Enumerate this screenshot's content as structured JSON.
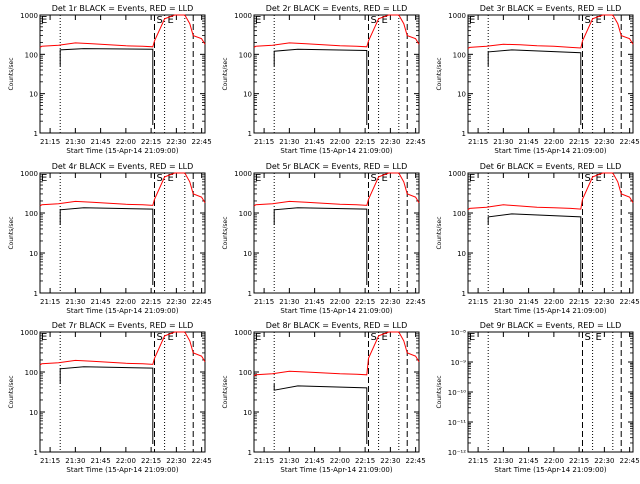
{
  "colors": {
    "events": "#000000",
    "lld": "#ff0000",
    "axes": "#000000"
  },
  "chart_data": [
    {
      "type": "line",
      "title": "Det 1r BLACK = Events, RED = LLD",
      "xlabel": "Start Time (15-Apr-14 21:09:00)",
      "ylabel": "Counts/sec",
      "scale": "log",
      "ylim": [
        1,
        1000
      ],
      "xlim": [
        "21:09",
        "22:47"
      ],
      "x_ticks": [
        "21:15",
        "21:30",
        "21:45",
        "22:00",
        "22:15",
        "22:30",
        "22:45"
      ],
      "y_ticks": [
        "1",
        "10",
        "100",
        "1000"
      ],
      "markers": [
        "S",
        "E"
      ],
      "annotation_left": "E",
      "dotted_times": [
        "21:21",
        "22:23",
        "22:35"
      ],
      "dashed_times": [
        "22:17",
        "22:40"
      ],
      "series": [
        {
          "color": "events",
          "x": [
            "21:09",
            "21:21",
            "21:35",
            "22:16"
          ],
          "y": [
            0,
            130,
            140,
            135
          ]
        },
        {
          "color": "lld",
          "x": [
            "21:09",
            "21:10",
            "21:20",
            "21:30",
            "21:40",
            "21:50",
            "22:00",
            "22:10",
            "22:16",
            "22:17",
            "22:23",
            "22:29",
            "22:31",
            "22:35",
            "22:38",
            "22:40",
            "22:45",
            "22:47"
          ],
          "y": [
            150,
            160,
            170,
            195,
            185,
            175,
            165,
            160,
            155,
            220,
            800,
            1000,
            1000,
            1000,
            600,
            300,
            250,
            180
          ]
        }
      ]
    },
    {
      "type": "line",
      "title": "Det 2r BLACK = Events, RED = LLD",
      "xlabel": "Start Time (15-Apr-14 21:09:00)",
      "ylabel": "Counts/sec",
      "scale": "log",
      "ylim": [
        1,
        1000
      ],
      "xlim": [
        "21:09",
        "22:47"
      ],
      "x_ticks": [
        "21:15",
        "21:30",
        "21:45",
        "22:00",
        "22:15",
        "22:30",
        "22:45"
      ],
      "y_ticks": [
        "1",
        "10",
        "100",
        "1000"
      ],
      "markers": [
        "S",
        "E"
      ],
      "annotation_left": "E",
      "dotted_times": [
        "21:21",
        "22:23",
        "22:35"
      ],
      "dashed_times": [
        "22:17",
        "22:40"
      ],
      "series": [
        {
          "color": "events",
          "x": [
            "21:09",
            "21:21",
            "21:35",
            "22:16"
          ],
          "y": [
            0,
            120,
            135,
            125
          ]
        },
        {
          "color": "lld",
          "x": [
            "21:09",
            "21:10",
            "21:20",
            "21:30",
            "21:40",
            "21:50",
            "22:00",
            "22:10",
            "22:16",
            "22:17",
            "22:23",
            "22:29",
            "22:31",
            "22:35",
            "22:38",
            "22:40",
            "22:45",
            "22:47"
          ],
          "y": [
            150,
            160,
            170,
            195,
            185,
            175,
            165,
            160,
            155,
            220,
            800,
            1000,
            1000,
            1000,
            600,
            300,
            250,
            180
          ]
        }
      ]
    },
    {
      "type": "line",
      "title": "Det 3r BLACK = Events, RED = LLD",
      "xlabel": "Start Time (15-Apr-14 21:09:00)",
      "ylabel": "Counts/sec",
      "scale": "log",
      "ylim": [
        1,
        1000
      ],
      "xlim": [
        "21:09",
        "22:47"
      ],
      "x_ticks": [
        "21:15",
        "21:30",
        "21:45",
        "22:00",
        "22:15",
        "22:30",
        "22:45"
      ],
      "y_ticks": [
        "1",
        "10",
        "100",
        "1000"
      ],
      "markers": [
        "S",
        "E"
      ],
      "annotation_left": "E",
      "dotted_times": [
        "21:21",
        "22:23",
        "22:35"
      ],
      "dashed_times": [
        "22:17",
        "22:40"
      ],
      "series": [
        {
          "color": "events",
          "x": [
            "21:09",
            "21:21",
            "21:35",
            "22:16"
          ],
          "y": [
            0,
            115,
            130,
            110
          ]
        },
        {
          "color": "lld",
          "x": [
            "21:09",
            "21:10",
            "21:20",
            "21:30",
            "21:40",
            "21:50",
            "22:00",
            "22:10",
            "22:16",
            "22:17",
            "22:23",
            "22:29",
            "22:31",
            "22:35",
            "22:38",
            "22:40",
            "22:45",
            "22:47"
          ],
          "y": [
            140,
            150,
            160,
            180,
            175,
            165,
            160,
            150,
            145,
            220,
            800,
            1000,
            1000,
            1000,
            600,
            300,
            250,
            180
          ]
        }
      ]
    },
    {
      "type": "line",
      "title": "Det 4r BLACK = Events, RED = LLD",
      "xlabel": "Start Time (15-Apr-14 21:09:00)",
      "ylabel": "Counts/sec",
      "scale": "log",
      "ylim": [
        1,
        1000
      ],
      "xlim": [
        "21:09",
        "22:47"
      ],
      "x_ticks": [
        "21:15",
        "21:30",
        "21:45",
        "22:00",
        "22:15",
        "22:30",
        "22:45"
      ],
      "y_ticks": [
        "1",
        "10",
        "100",
        "1000"
      ],
      "markers": [
        "S",
        "E"
      ],
      "annotation_left": "E",
      "dotted_times": [
        "21:21",
        "22:23",
        "22:35"
      ],
      "dashed_times": [
        "22:17",
        "22:40"
      ],
      "series": [
        {
          "color": "events",
          "x": [
            "21:09",
            "21:21",
            "21:35",
            "22:16"
          ],
          "y": [
            0,
            120,
            135,
            125
          ]
        },
        {
          "color": "lld",
          "x": [
            "21:09",
            "21:10",
            "21:20",
            "21:30",
            "21:40",
            "21:50",
            "22:00",
            "22:10",
            "22:16",
            "22:17",
            "22:23",
            "22:29",
            "22:31",
            "22:35",
            "22:38",
            "22:40",
            "22:45",
            "22:47"
          ],
          "y": [
            150,
            160,
            170,
            195,
            185,
            175,
            165,
            160,
            155,
            220,
            800,
            1000,
            1000,
            1000,
            600,
            300,
            250,
            180
          ]
        }
      ]
    },
    {
      "type": "line",
      "title": "Det 5r BLACK = Events, RED = LLD",
      "xlabel": "Start Time (15-Apr-14 21:09:00)",
      "ylabel": "Counts/sec",
      "scale": "log",
      "ylim": [
        1,
        1000
      ],
      "xlim": [
        "21:09",
        "22:47"
      ],
      "x_ticks": [
        "21:15",
        "21:30",
        "21:45",
        "22:00",
        "22:15",
        "22:30",
        "22:45"
      ],
      "y_ticks": [
        "1",
        "10",
        "100",
        "1000"
      ],
      "markers": [
        "S",
        "E"
      ],
      "annotation_left": "E",
      "dotted_times": [
        "21:21",
        "22:23",
        "22:35"
      ],
      "dashed_times": [
        "22:17",
        "22:40"
      ],
      "series": [
        {
          "color": "events",
          "x": [
            "21:09",
            "21:21",
            "21:35",
            "22:16"
          ],
          "y": [
            0,
            120,
            135,
            125
          ]
        },
        {
          "color": "lld",
          "x": [
            "21:09",
            "21:10",
            "21:20",
            "21:30",
            "21:40",
            "21:50",
            "22:00",
            "22:10",
            "22:16",
            "22:17",
            "22:23",
            "22:29",
            "22:31",
            "22:35",
            "22:38",
            "22:40",
            "22:45",
            "22:47"
          ],
          "y": [
            150,
            160,
            170,
            195,
            185,
            175,
            165,
            160,
            155,
            220,
            800,
            1000,
            1000,
            1000,
            600,
            300,
            250,
            180
          ]
        }
      ]
    },
    {
      "type": "line",
      "title": "Det 6r BLACK = Events, RED = LLD",
      "xlabel": "Start Time (15-Apr-14 21:09:00)",
      "ylabel": "Counts/sec",
      "scale": "log",
      "ylim": [
        1,
        1000
      ],
      "xlim": [
        "21:09",
        "22:47"
      ],
      "x_ticks": [
        "21:15",
        "21:30",
        "21:45",
        "22:00",
        "22:15",
        "22:30",
        "22:45"
      ],
      "y_ticks": [
        "1",
        "10",
        "100",
        "1000"
      ],
      "markers": [
        "S",
        "E"
      ],
      "annotation_left": "E",
      "dotted_times": [
        "21:21",
        "22:23",
        "22:35"
      ],
      "dashed_times": [
        "22:17",
        "22:40"
      ],
      "series": [
        {
          "color": "events",
          "x": [
            "21:09",
            "21:21",
            "21:35",
            "22:16"
          ],
          "y": [
            0,
            80,
            95,
            80
          ]
        },
        {
          "color": "lld",
          "x": [
            "21:09",
            "21:10",
            "21:20",
            "21:30",
            "21:40",
            "21:50",
            "22:00",
            "22:10",
            "22:16",
            "22:17",
            "22:23",
            "22:29",
            "22:31",
            "22:35",
            "22:38",
            "22:40",
            "22:45",
            "22:47"
          ],
          "y": [
            120,
            130,
            140,
            160,
            150,
            140,
            135,
            130,
            125,
            220,
            800,
            1000,
            1000,
            1000,
            600,
            300,
            250,
            180
          ]
        }
      ]
    },
    {
      "type": "line",
      "title": "Det 7r BLACK = Events, RED = LLD",
      "xlabel": "Start Time (15-Apr-14 21:09:00)",
      "ylabel": "Counts/sec",
      "scale": "log",
      "ylim": [
        1,
        1000
      ],
      "xlim": [
        "21:09",
        "22:47"
      ],
      "x_ticks": [
        "21:15",
        "21:30",
        "21:45",
        "22:00",
        "22:15",
        "22:30",
        "22:45"
      ],
      "y_ticks": [
        "1",
        "10",
        "100",
        "1000"
      ],
      "markers": [
        "S",
        "E"
      ],
      "annotation_left": "E",
      "dotted_times": [
        "21:21",
        "22:23",
        "22:35"
      ],
      "dashed_times": [
        "22:17",
        "22:40"
      ],
      "series": [
        {
          "color": "events",
          "x": [
            "21:09",
            "21:21",
            "21:35",
            "22:16"
          ],
          "y": [
            0,
            120,
            135,
            125
          ]
        },
        {
          "color": "lld",
          "x": [
            "21:09",
            "21:10",
            "21:20",
            "21:30",
            "21:40",
            "21:50",
            "22:00",
            "22:10",
            "22:16",
            "22:17",
            "22:23",
            "22:29",
            "22:31",
            "22:35",
            "22:38",
            "22:40",
            "22:45",
            "22:47"
          ],
          "y": [
            150,
            160,
            170,
            195,
            185,
            175,
            165,
            160,
            155,
            220,
            800,
            1000,
            1000,
            1000,
            600,
            300,
            250,
            180
          ]
        }
      ]
    },
    {
      "type": "line",
      "title": "Det 8r BLACK = Events, RED = LLD",
      "xlabel": "Start Time (15-Apr-14 21:09:00)",
      "ylabel": "Counts/sec",
      "scale": "log",
      "ylim": [
        1,
        1000
      ],
      "xlim": [
        "21:09",
        "22:47"
      ],
      "x_ticks": [
        "21:15",
        "21:30",
        "21:45",
        "22:00",
        "22:15",
        "22:30",
        "22:45"
      ],
      "y_ticks": [
        "1",
        "10",
        "100",
        "1000"
      ],
      "markers": [
        "S",
        "E"
      ],
      "annotation_left": "E",
      "dotted_times": [
        "21:21",
        "22:23",
        "22:35"
      ],
      "dashed_times": [
        "22:17",
        "22:40"
      ],
      "series": [
        {
          "color": "events",
          "x": [
            "21:09",
            "21:21",
            "21:35",
            "22:16"
          ],
          "y": [
            0,
            35,
            45,
            40
          ]
        },
        {
          "color": "lld",
          "x": [
            "21:09",
            "21:10",
            "21:20",
            "21:30",
            "21:40",
            "21:50",
            "22:00",
            "22:10",
            "22:16",
            "22:17",
            "22:23",
            "22:29",
            "22:31",
            "22:35",
            "22:38",
            "22:40",
            "22:45",
            "22:47"
          ],
          "y": [
            80,
            85,
            90,
            105,
            100,
            95,
            90,
            88,
            85,
            220,
            800,
            1000,
            1000,
            1000,
            600,
            300,
            250,
            180
          ]
        }
      ]
    },
    {
      "type": "line",
      "title": "Det 9r BLACK = Events, RED = LLD",
      "xlabel": "Start Time (15-Apr-14 21:09:00)",
      "ylabel": "Counts/sec",
      "scale": "log",
      "ylim": [
        1e-12,
        1e-08
      ],
      "xlim": [
        "21:09",
        "22:47"
      ],
      "x_ticks": [
        "21:15",
        "21:30",
        "21:45",
        "22:00",
        "22:15",
        "22:30",
        "22:45"
      ],
      "y_ticks": [
        "10⁻¹²",
        "10⁻¹¹",
        "10⁻¹⁰",
        "10⁻⁹",
        "10⁻⁸"
      ],
      "markers": [
        "S",
        "E"
      ],
      "annotation_left": "E",
      "dotted_times": [
        "21:21",
        "22:23",
        "22:35"
      ],
      "dashed_times": [
        "22:17",
        "22:40"
      ],
      "series": []
    }
  ]
}
